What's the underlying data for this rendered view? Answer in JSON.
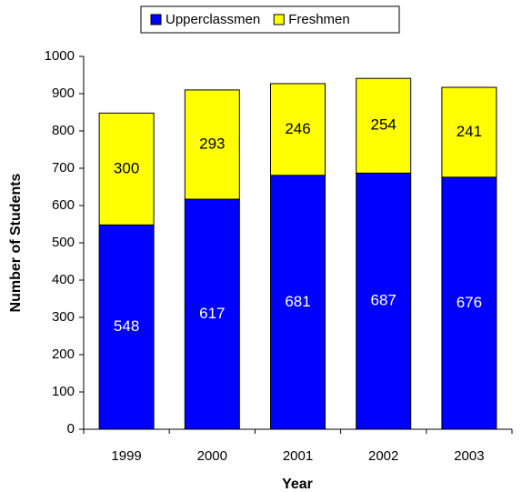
{
  "chart_data": {
    "type": "bar",
    "stacked": true,
    "x_label": "Year",
    "y_label": "Number of Students",
    "categories": [
      "1999",
      "2000",
      "2001",
      "2002",
      "2003"
    ],
    "series": [
      {
        "name": "Upperclassmen",
        "color": "#0000ff",
        "label_color": "#ffffff",
        "values": [
          548,
          617,
          681,
          687,
          676
        ]
      },
      {
        "name": "Freshmen",
        "color": "#ffff00",
        "label_color": "#000000",
        "values": [
          300,
          293,
          246,
          254,
          241
        ]
      }
    ],
    "ylim": [
      0,
      1000
    ],
    "yticks": [
      0,
      100,
      200,
      300,
      400,
      500,
      600,
      700,
      800,
      900,
      1000
    ],
    "grid": false,
    "legend": "top"
  }
}
